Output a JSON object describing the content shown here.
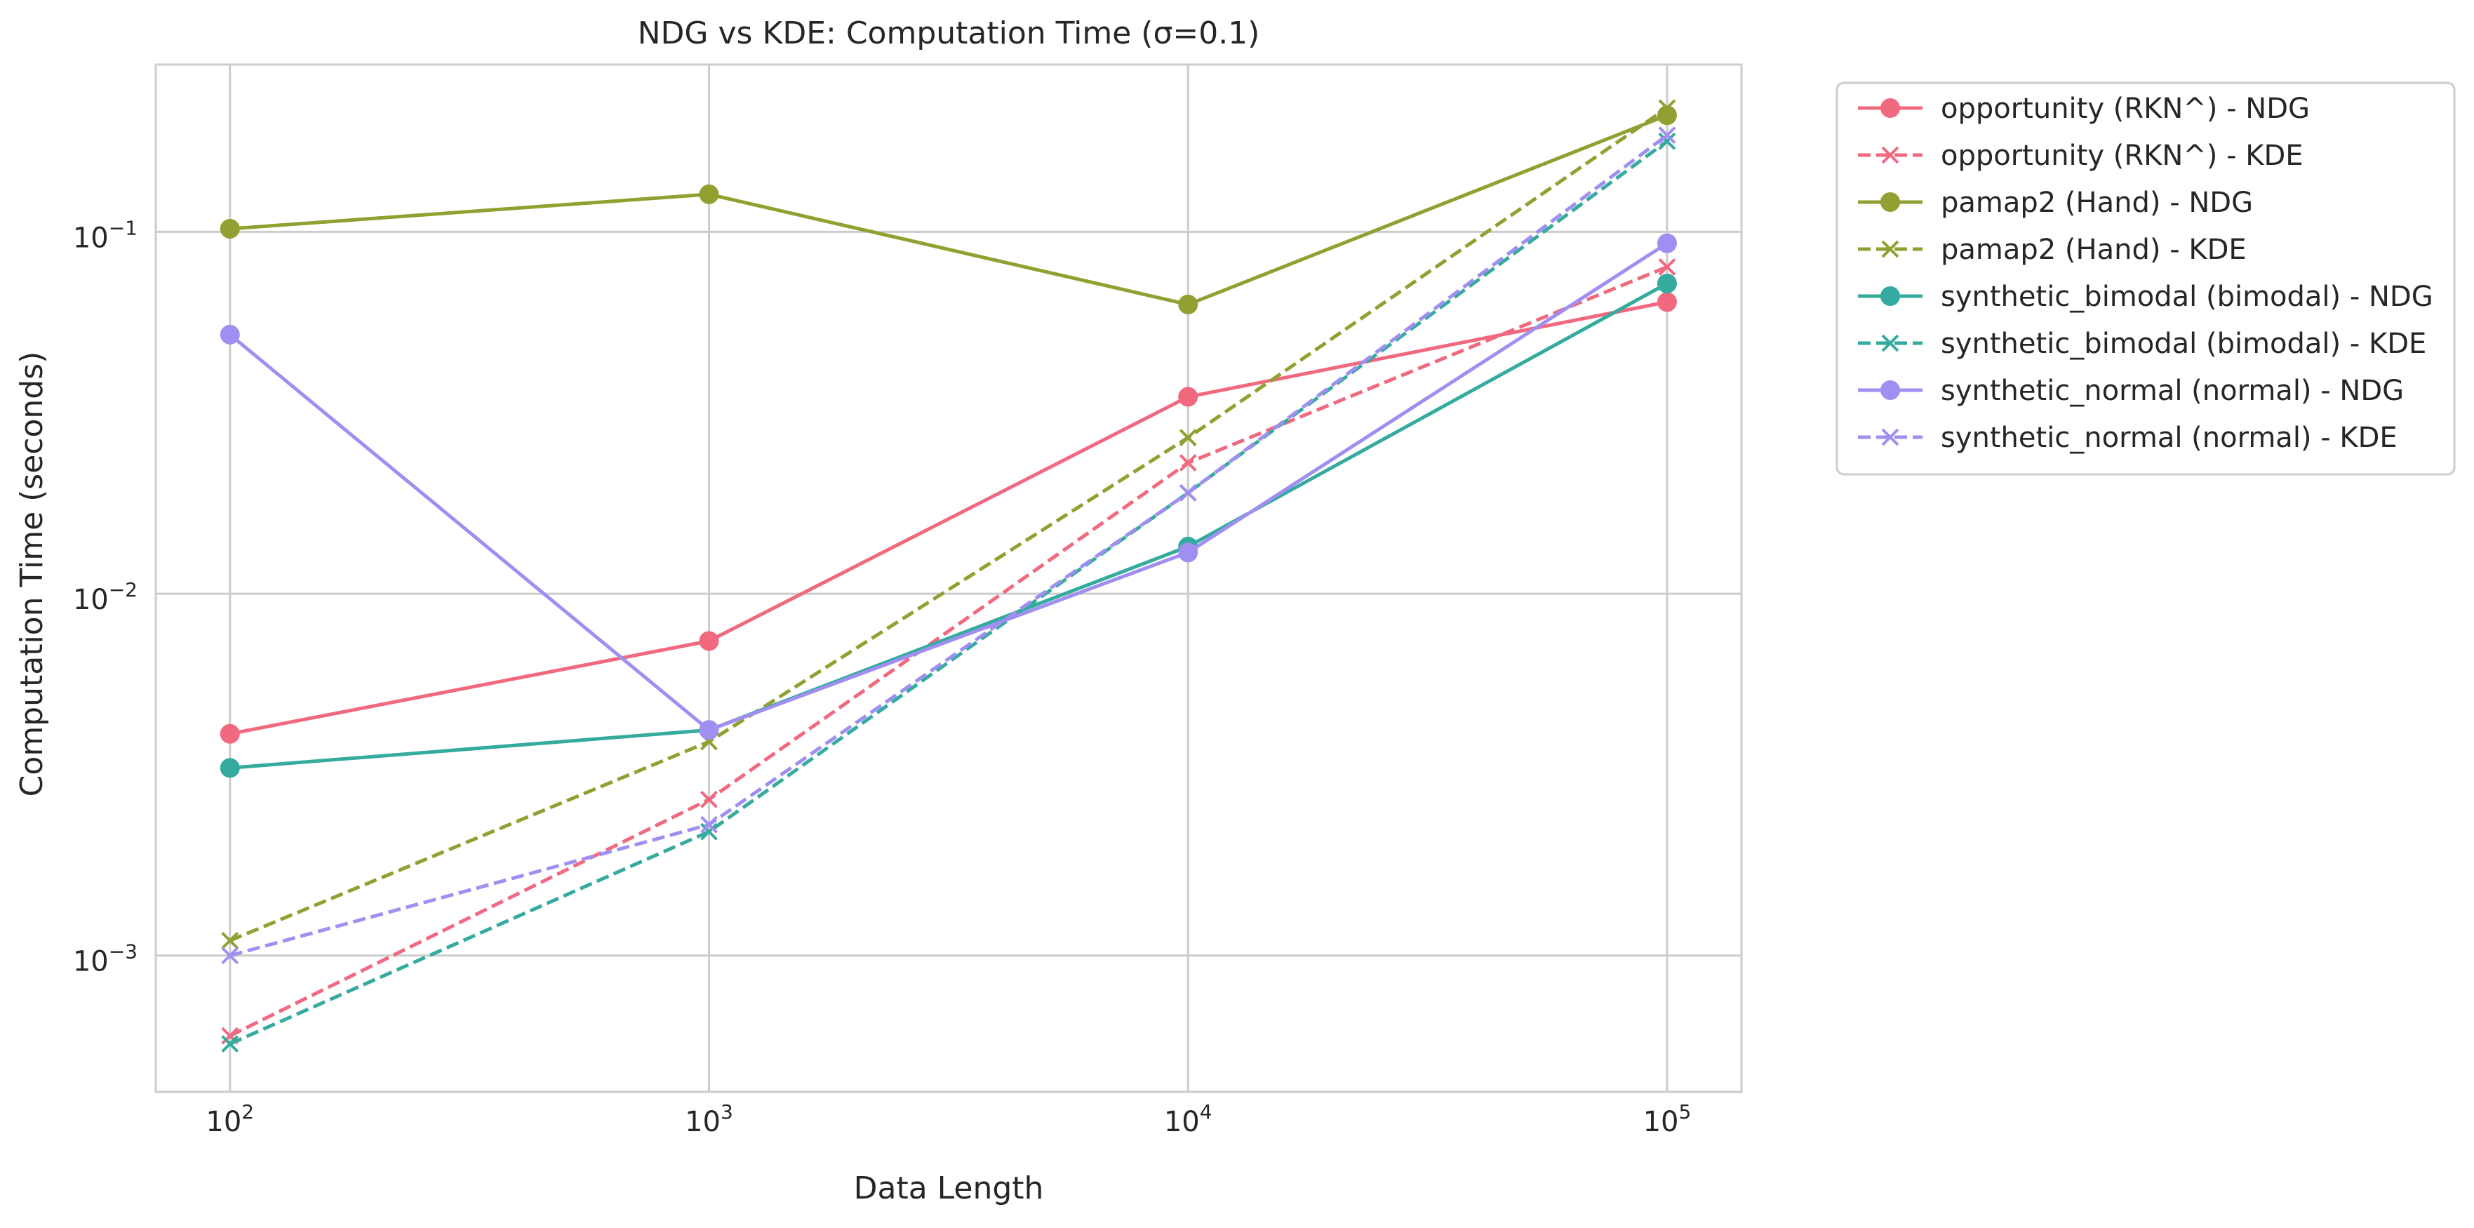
{
  "chart_data": {
    "type": "line",
    "title": "NDG vs KDE: Computation Time (σ=0.1)",
    "xlabel": "Data Length",
    "ylabel": "Computation Time (seconds)",
    "xscale": "log",
    "yscale": "log",
    "xlim": [
      70,
      143000
    ],
    "ylim": [
      0.00042,
      0.29
    ],
    "x": [
      100,
      1000,
      10000,
      100000
    ],
    "x_ticks": [
      {
        "value": 100,
        "base": "10",
        "exp": "2"
      },
      {
        "value": 1000,
        "base": "10",
        "exp": "3"
      },
      {
        "value": 10000,
        "base": "10",
        "exp": "4"
      },
      {
        "value": 100000,
        "base": "10",
        "exp": "5"
      }
    ],
    "y_ticks": [
      {
        "value": 0.001,
        "base": "10",
        "exp": "−3"
      },
      {
        "value": 0.01,
        "base": "10",
        "exp": "−2"
      },
      {
        "value": 0.1,
        "base": "10",
        "exp": "−1"
      }
    ],
    "grid": true,
    "legend_position": "outside upper right",
    "series": [
      {
        "name": "opportunity (RKN^) - NDG",
        "color": "#f0697e",
        "style": "solid",
        "marker": "circle",
        "values": [
          0.0041,
          0.0074,
          0.035,
          0.064
        ]
      },
      {
        "name": "opportunity (RKN^) - KDE",
        "color": "#f0697e",
        "style": "dashed",
        "marker": "x",
        "values": [
          0.0006,
          0.0027,
          0.023,
          0.08
        ]
      },
      {
        "name": "pamap2 (Hand) - NDG",
        "color": "#91a030",
        "style": "solid",
        "marker": "circle",
        "values": [
          0.102,
          0.127,
          0.063,
          0.21
        ]
      },
      {
        "name": "pamap2 (Hand) - KDE",
        "color": "#91a030",
        "style": "dashed",
        "marker": "x",
        "values": [
          0.0011,
          0.0039,
          0.027,
          0.22
        ]
      },
      {
        "name": "synthetic_bimodal (bimodal) - NDG",
        "color": "#34ab9e",
        "style": "solid",
        "marker": "circle",
        "values": [
          0.0033,
          0.0042,
          0.0135,
          0.072
        ]
      },
      {
        "name": "synthetic_bimodal (bimodal) - KDE",
        "color": "#34ab9e",
        "style": "dashed",
        "marker": "x",
        "values": [
          0.00057,
          0.0022,
          0.019,
          0.178
        ]
      },
      {
        "name": "synthetic_normal (normal) - NDG",
        "color": "#a08ff0",
        "style": "solid",
        "marker": "circle",
        "values": [
          0.052,
          0.0042,
          0.013,
          0.093
        ]
      },
      {
        "name": "synthetic_normal (normal) - KDE",
        "color": "#a08ff0",
        "style": "dashed",
        "marker": "x",
        "values": [
          0.001,
          0.0023,
          0.019,
          0.185
        ]
      }
    ]
  }
}
